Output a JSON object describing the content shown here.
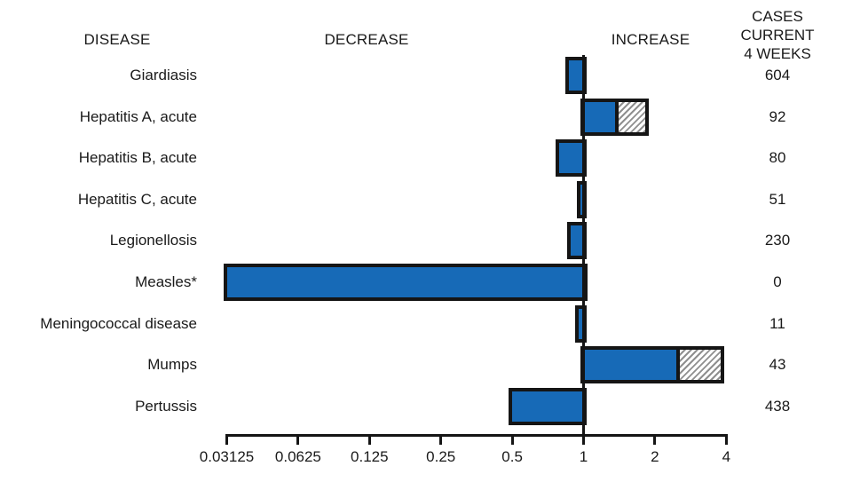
{
  "header": {
    "disease": "DISEASE",
    "decrease": "DECREASE",
    "increase": "INCREASE",
    "cases_current": "CASES CURRENT\n4 WEEKS"
  },
  "chart_data": {
    "type": "bar",
    "orientation": "horizontal",
    "scale": "log2",
    "baseline": 1,
    "axis_range": [
      0.03125,
      4
    ],
    "grid": false,
    "ticks": [
      {
        "value": 0.03125,
        "label": "0.03125"
      },
      {
        "value": 0.0625,
        "label": "0.0625"
      },
      {
        "value": 0.125,
        "label": "0.125"
      },
      {
        "value": 0.25,
        "label": "0.25"
      },
      {
        "value": 0.5,
        "label": "0.5"
      },
      {
        "value": 1,
        "label": "1"
      },
      {
        "value": 2,
        "label": "2"
      },
      {
        "value": 4,
        "label": "4"
      }
    ],
    "rows": [
      {
        "label": "Giardiasis",
        "cases": "604",
        "bar_start": 0.87,
        "bar_end": 1,
        "hatch_from": null
      },
      {
        "label": "Hepatitis A, acute",
        "cases": "92",
        "bar_start": 1,
        "bar_end": 1.82,
        "hatch_from": 1.38
      },
      {
        "label": "Hepatitis B, acute",
        "cases": "80",
        "bar_start": 0.79,
        "bar_end": 1,
        "hatch_from": null
      },
      {
        "label": "Hepatitis C, acute",
        "cases": "51",
        "bar_start": 0.97,
        "bar_end": 1,
        "hatch_from": null
      },
      {
        "label": "Legionellosis",
        "cases": "230",
        "bar_start": 0.88,
        "bar_end": 1,
        "hatch_from": null
      },
      {
        "label": "Measles*",
        "cases": "0",
        "bar_start": 0.03125,
        "bar_end": 1,
        "hatch_from": null
      },
      {
        "label": "Meningococcal disease",
        "cases": "11",
        "bar_start": 0.95,
        "bar_end": 1,
        "hatch_from": null
      },
      {
        "label": "Mumps",
        "cases": "43",
        "bar_start": 1,
        "bar_end": 3.8,
        "hatch_from": 2.5
      },
      {
        "label": "Pertussis",
        "cases": "438",
        "bar_start": 0.5,
        "bar_end": 1,
        "hatch_from": null
      }
    ],
    "colors": {
      "bar_fill": "#176ab7",
      "bar_border": "#151515",
      "hatch_line": "#8f8f8f",
      "hatch_bg": "#ffffff",
      "text": "#1a1a1a"
    }
  }
}
